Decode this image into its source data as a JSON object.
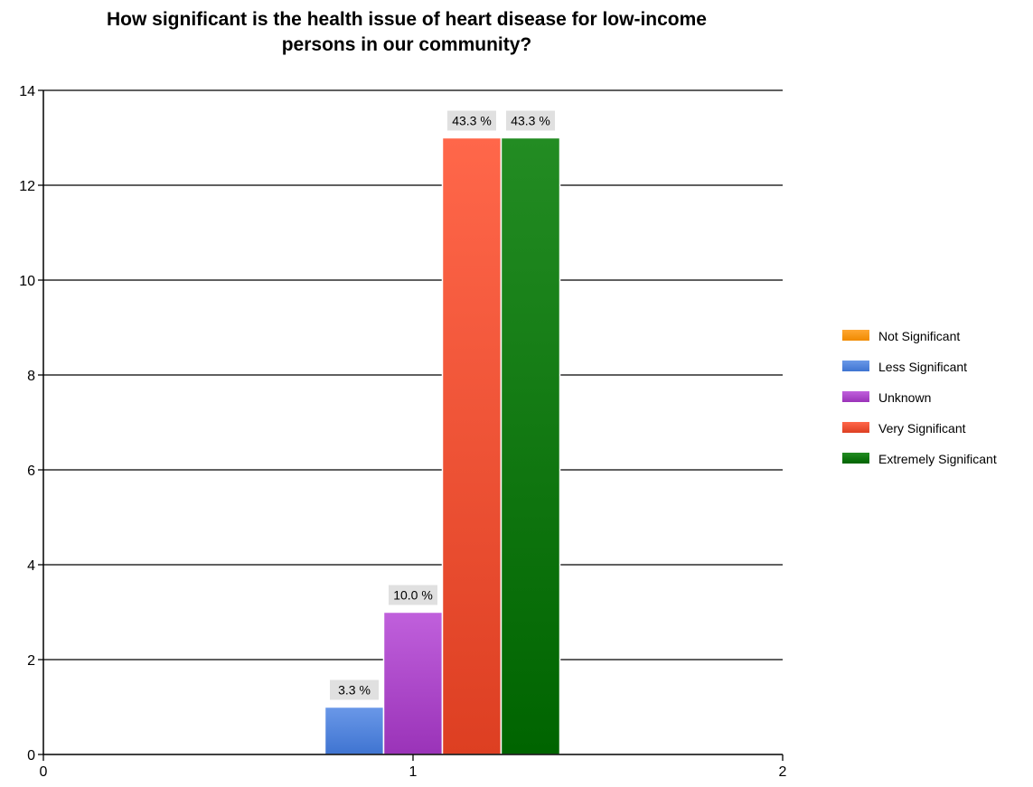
{
  "chart_data": {
    "type": "bar",
    "title": "How significant is the health issue of heart disease for low-income\npersons in our community?",
    "xlabel": "",
    "ylabel": "",
    "x_ticks": [
      "0",
      "1",
      "2"
    ],
    "y_ticks": [
      "0",
      "2",
      "4",
      "6",
      "8",
      "10",
      "12",
      "14"
    ],
    "xlim": [
      0,
      2
    ],
    "ylim": [
      0,
      14
    ],
    "grid": true,
    "legend_position": "right",
    "categories": [
      "1"
    ],
    "series": [
      {
        "name": "Not Significant",
        "values": [
          0
        ],
        "label": "",
        "color": "#f08a00",
        "color_light": "#ffa733"
      },
      {
        "name": "Less Significant",
        "values": [
          1
        ],
        "label": "3.3 %",
        "color": "#3f74d1",
        "color_light": "#6a98e8"
      },
      {
        "name": "Unknown",
        "values": [
          3
        ],
        "label": "10.0 %",
        "color": "#9a33b8",
        "color_light": "#c060dc"
      },
      {
        "name": "Very Significant",
        "values": [
          13
        ],
        "label": "43.3 %",
        "color": "#dd3f22",
        "color_light": "#ff674a"
      },
      {
        "name": "Extremely Significant",
        "values": [
          13
        ],
        "label": "43.3 %",
        "color": "#006400",
        "color_light": "#238c23"
      }
    ]
  }
}
